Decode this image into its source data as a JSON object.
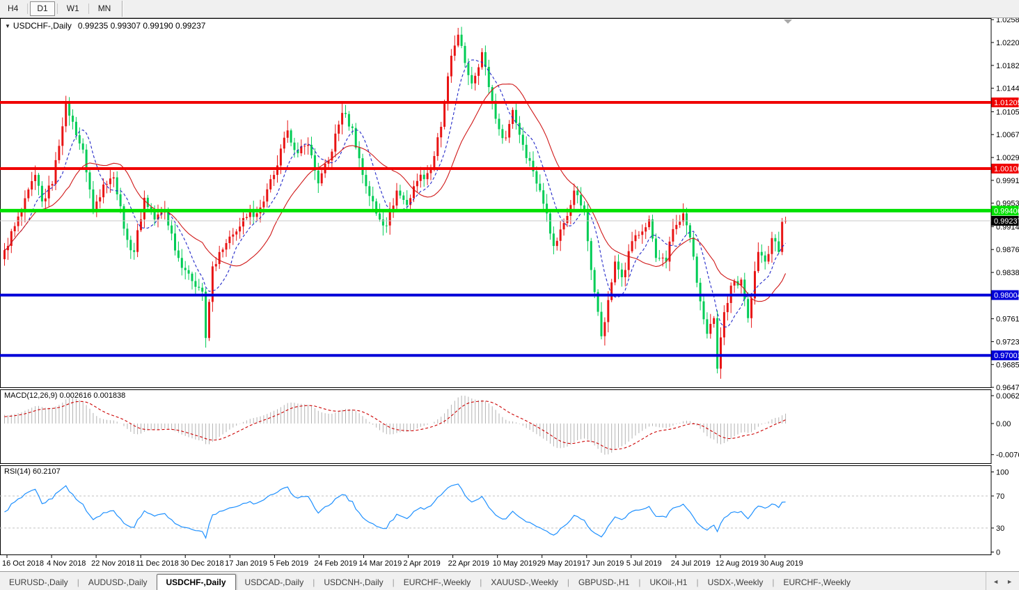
{
  "toolbar": {
    "timeframes": [
      "H4",
      "D1",
      "W1",
      "MN"
    ],
    "active": "D1"
  },
  "main_pane": {
    "collapse_icon": "▼",
    "title": "USDCHF-,Daily",
    "ohlc_text": "0.99235 0.99307 0.99190 0.99237",
    "open": "0.99235",
    "high": "0.99307",
    "low": "0.99190",
    "close": "0.99237"
  },
  "indicators": {
    "macd_label": "MACD(12,26,9) 0.002616 0.001838",
    "rsi_label": "RSI(14) 60.2107"
  },
  "chart_data": {
    "type": "candlestick",
    "symbol": "USDCHF",
    "timeframe": "Daily",
    "bar_count": 230,
    "noise": 0.0008,
    "wick": 0.0014,
    "candle_up_color": "#e81414",
    "candle_down_color": "#00cc55",
    "last_bar": {
      "open": 0.99235,
      "high": 0.99307,
      "low": 0.9919,
      "close": 0.99237
    },
    "price_waypoints": [
      [
        0,
        0.9875
      ],
      [
        3,
        0.9915
      ],
      [
        5,
        0.9938
      ],
      [
        9,
        1.0
      ],
      [
        11,
        0.9956
      ],
      [
        14,
        0.9985
      ],
      [
        18,
        1.0122
      ],
      [
        21,
        1.0066
      ],
      [
        23,
        1.0042
      ],
      [
        26,
        0.9942
      ],
      [
        29,
        0.9984
      ],
      [
        32,
        0.9996
      ],
      [
        36,
        0.9892
      ],
      [
        38,
        0.9872
      ],
      [
        41,
        0.9962
      ],
      [
        44,
        0.9926
      ],
      [
        47,
        0.994
      ],
      [
        51,
        0.9862
      ],
      [
        54,
        0.9836
      ],
      [
        58,
        0.9806
      ],
      [
        59,
        0.9729
      ],
      [
        61,
        0.9848
      ],
      [
        64,
        0.9876
      ],
      [
        68,
        0.9906
      ],
      [
        71,
        0.993
      ],
      [
        75,
        0.9946
      ],
      [
        79,
        1.0
      ],
      [
        83,
        1.0074
      ],
      [
        86,
        1.0036
      ],
      [
        89,
        1.005
      ],
      [
        92,
        0.9986
      ],
      [
        95,
        1.0024
      ],
      [
        99,
        1.0103
      ],
      [
        102,
        1.0078
      ],
      [
        105,
        1.0
      ],
      [
        109,
        0.9936
      ],
      [
        112,
        0.9916
      ],
      [
        115,
        0.9974
      ],
      [
        118,
        0.995
      ],
      [
        121,
        0.999
      ],
      [
        125,
        1.001
      ],
      [
        128,
        1.008
      ],
      [
        131,
        1.0198
      ],
      [
        133,
        1.0233
      ],
      [
        135,
        1.0186
      ],
      [
        137,
        1.0152
      ],
      [
        140,
        1.0204
      ],
      [
        142,
        1.0146
      ],
      [
        145,
        1.0076
      ],
      [
        147,
        1.0062
      ],
      [
        149,
        1.0108
      ],
      [
        152,
        1.005
      ],
      [
        155,
        1.0006
      ],
      [
        159,
        0.9936
      ],
      [
        161,
        0.9882
      ],
      [
        164,
        0.992
      ],
      [
        167,
        0.9974
      ],
      [
        170,
        0.994
      ],
      [
        172,
        0.9842
      ],
      [
        175,
        0.9732
      ],
      [
        177,
        0.9792
      ],
      [
        179,
        0.9856
      ],
      [
        181,
        0.983
      ],
      [
        184,
        0.989
      ],
      [
        187,
        0.9906
      ],
      [
        189,
        0.9926
      ],
      [
        191,
        0.9862
      ],
      [
        194,
        0.9856
      ],
      [
        196,
        0.991
      ],
      [
        199,
        0.9936
      ],
      [
        201,
        0.9896
      ],
      [
        204,
        0.979
      ],
      [
        206,
        0.9736
      ],
      [
        208,
        0.9762
      ],
      [
        209,
        0.9678
      ],
      [
        211,
        0.9772
      ],
      [
        213,
        0.9816
      ],
      [
        216,
        0.9826
      ],
      [
        218,
        0.9762
      ],
      [
        221,
        0.9872
      ],
      [
        223,
        0.9856
      ],
      [
        225,
        0.9895
      ],
      [
        227,
        0.9872
      ],
      [
        228,
        0.9922
      ],
      [
        229,
        0.99237
      ]
    ],
    "moving_averages": [
      {
        "period": 8,
        "color": "#2228c8",
        "dash": "4 3"
      },
      {
        "period": 20,
        "color": "#d01818",
        "dash": ""
      }
    ],
    "horizontal_lines": [
      {
        "price": 1.01205,
        "label": "1.01205",
        "color": "#f00000",
        "width": 4
      },
      {
        "price": 1.00106,
        "label": "1.00106",
        "color": "#f00000",
        "width": 4
      },
      {
        "price": 0.99406,
        "label": "0.99406",
        "color": "#00e000",
        "width": 5
      },
      {
        "price": 0.98004,
        "label": "0.98004",
        "color": "#0000d8",
        "width": 4
      },
      {
        "price": 0.97001,
        "label": "0.97001",
        "color": "#0000d8",
        "width": 4
      }
    ],
    "current_price": {
      "value": 0.99237,
      "label": "0.99237",
      "line_color": "#c8c8c8",
      "tag_bg": "#000000"
    },
    "price_ticks": [
      "1.02580",
      "1.02200",
      "1.01820",
      "1.01440",
      "1.01050",
      "1.00670",
      "1.00290",
      "0.99910",
      "0.99530",
      "0.99140",
      "0.98760",
      "0.98380",
      "0.97610",
      "0.97230",
      "0.96850",
      "0.96470"
    ],
    "time_ticks": [
      "16 Oct 2018",
      "4 Nov 2018",
      "22 Nov 2018",
      "11 Dec 2018",
      "30 Dec 2018",
      "17 Jan 2019",
      "5 Feb 2019",
      "24 Feb 2019",
      "14 Mar 2019",
      "2 Apr 2019",
      "22 Apr 2019",
      "10 May 2019",
      "29 May 2019",
      "17 Jun 2019",
      "5 Jul 2019",
      "24 Jul 2019",
      "12 Aug 2019",
      "30 Aug 2019"
    ],
    "macd": {
      "params": "12,26,9",
      "value": 0.002616,
      "signal_value": 0.001838,
      "axis_max": "0.006286",
      "axis_zero": "0.00",
      "axis_min": "-0.00762",
      "hist_color": "#b2b2b2",
      "signal_color": "#cc0000"
    },
    "rsi": {
      "period": 14,
      "value": 60.2107,
      "levels": [
        30,
        70
      ],
      "axis_labels": [
        "100",
        "70",
        "30",
        "0"
      ],
      "color": "#1e90ff",
      "level_color": "#c0c0c0"
    }
  },
  "tabs": {
    "items": [
      "EURUSD-,Daily",
      "AUDUSD-,Daily",
      "USDCHF-,Daily",
      "USDCAD-,Daily",
      "USDCNH-,Daily",
      "EURCHF-,Weekly",
      "XAUUSD-,Weekly",
      "GBPUSD-,H1",
      "UKOil-,H1",
      "USDX-,Weekly",
      "EURCHF-,Weekly"
    ],
    "active_index": 2,
    "nav_left": "◄",
    "nav_right": "►"
  }
}
